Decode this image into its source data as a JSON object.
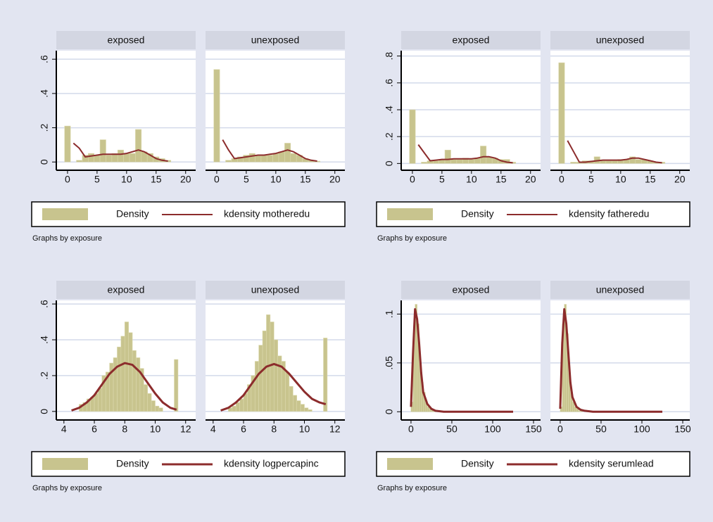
{
  "chart_data": [
    {
      "type": "histogram",
      "xlim": [
        -1.9,
        21.7
      ],
      "xticks": [
        0,
        5,
        10,
        15,
        20
      ],
      "ylim": [
        -0.04,
        0.65
      ],
      "yticks": [
        0,
        {
          "value": 0.2,
          "label": ".2"
        },
        {
          "value": 0.4,
          "label": ".4"
        },
        {
          "value": 0.6,
          "label": ".6"
        }
      ],
      "grid": true,
      "line_width": 2,
      "legend": [
        {
          "name": "Density",
          "color": "#c8c48e"
        },
        {
          "name": "kdensity motheredu",
          "color": "#8c2c2c"
        }
      ],
      "note": "Graphs by exposure",
      "panels": [
        {
          "title": "exposed",
          "bins": [
            -0.5,
            0.5,
            1.5,
            2.5,
            3.5,
            4.5,
            5.5,
            6.5,
            7.5,
            8.5,
            9.5,
            10.5,
            11.5,
            12.5,
            13.5,
            14.5,
            15.5,
            16.5,
            17.5
          ],
          "values": [
            0.21,
            0,
            0.01,
            0.04,
            0.05,
            0.04,
            0.13,
            0.04,
            0.05,
            0.07,
            0.05,
            0.05,
            0.19,
            0.06,
            0.05,
            0.03,
            0.02,
            0.01
          ],
          "density": {
            "x": [
              1,
              2,
              3,
              4,
              5,
              6,
              7,
              8,
              9,
              10,
              11,
              12,
              13,
              14,
              15,
              16,
              17
            ],
            "y": [
              0.11,
              0.08,
              0.03,
              0.035,
              0.04,
              0.045,
              0.045,
              0.045,
              0.045,
              0.05,
              0.06,
              0.07,
              0.06,
              0.04,
              0.02,
              0.01,
              0.005
            ]
          }
        },
        {
          "title": "unexposed",
          "bins": [
            -0.5,
            0.5,
            1.5,
            2.5,
            3.5,
            4.5,
            5.5,
            6.5,
            7.5,
            8.5,
            9.5,
            10.5,
            11.5,
            12.5,
            13.5,
            14.5,
            15.5,
            16.5,
            17.5
          ],
          "values": [
            0.54,
            0,
            0.01,
            0.02,
            0.03,
            0.04,
            0.05,
            0.04,
            0.04,
            0.04,
            0.05,
            0.06,
            0.11,
            0.05,
            0.04,
            0.02,
            0.01,
            0.005
          ],
          "density": {
            "x": [
              1,
              2,
              3,
              4,
              5,
              6,
              7,
              8,
              9,
              10,
              11,
              12,
              13,
              14,
              15,
              16,
              17
            ],
            "y": [
              0.13,
              0.07,
              0.02,
              0.025,
              0.03,
              0.035,
              0.04,
              0.04,
              0.045,
              0.05,
              0.06,
              0.07,
              0.06,
              0.04,
              0.02,
              0.01,
              0.005
            ]
          }
        }
      ]
    },
    {
      "type": "histogram",
      "xlim": [
        -1.9,
        21.7
      ],
      "xticks": [
        0,
        5,
        10,
        15,
        20
      ],
      "ylim": [
        -0.04,
        0.84
      ],
      "yticks": [
        0,
        {
          "value": 0.2,
          "label": ".2"
        },
        {
          "value": 0.4,
          "label": ".4"
        },
        {
          "value": 0.6,
          "label": ".6"
        },
        {
          "value": 0.8,
          "label": ".8"
        }
      ],
      "grid": true,
      "line_width": 2,
      "legend": [
        {
          "name": "Density",
          "color": "#c8c48e"
        },
        {
          "name": "kdensity fatheredu",
          "color": "#8c2c2c"
        }
      ],
      "note": "Graphs by exposure",
      "panels": [
        {
          "title": "exposed",
          "bins": [
            -0.5,
            0.5,
            1.5,
            2.5,
            3.5,
            4.5,
            5.5,
            6.5,
            7.5,
            8.5,
            9.5,
            10.5,
            11.5,
            12.5,
            13.5,
            14.5,
            15.5,
            16.5,
            17.5
          ],
          "values": [
            0.4,
            0,
            0.01,
            0.02,
            0.02,
            0.03,
            0.1,
            0.03,
            0.03,
            0.04,
            0.03,
            0.04,
            0.13,
            0.05,
            0.04,
            0.03,
            0.03,
            0.01
          ],
          "density": {
            "x": [
              1,
              2,
              3,
              4,
              5,
              6,
              7,
              8,
              9,
              10,
              11,
              12,
              13,
              14,
              15,
              16,
              17
            ],
            "y": [
              0.14,
              0.08,
              0.02,
              0.025,
              0.03,
              0.03,
              0.035,
              0.035,
              0.035,
              0.035,
              0.04,
              0.05,
              0.05,
              0.04,
              0.02,
              0.01,
              0.005
            ]
          }
        },
        {
          "title": "unexposed",
          "bins": [
            -0.5,
            0.5,
            1.5,
            2.5,
            3.5,
            4.5,
            5.5,
            6.5,
            7.5,
            8.5,
            9.5,
            10.5,
            11.5,
            12.5,
            13.5,
            14.5,
            15.5,
            16.5,
            17.5
          ],
          "values": [
            0.75,
            0,
            0.01,
            0.01,
            0.02,
            0.02,
            0.05,
            0.02,
            0.02,
            0.02,
            0.03,
            0.03,
            0.05,
            0.03,
            0.03,
            0.02,
            0.01,
            0.01
          ],
          "density": {
            "x": [
              1,
              2,
              3,
              4,
              5,
              6,
              7,
              8,
              9,
              10,
              11,
              12,
              13,
              14,
              15,
              16,
              17
            ],
            "y": [
              0.17,
              0.09,
              0.01,
              0.01,
              0.015,
              0.02,
              0.025,
              0.025,
              0.025,
              0.025,
              0.03,
              0.04,
              0.04,
              0.03,
              0.02,
              0.01,
              0.005
            ]
          }
        }
      ]
    },
    {
      "type": "histogram",
      "xlim": [
        3.5,
        12.66
      ],
      "xticks": [
        4,
        6,
        8,
        10,
        12
      ],
      "ylim": [
        -0.04,
        0.62
      ],
      "yticks": [
        0,
        {
          "value": 0.2,
          "label": ".2"
        },
        {
          "value": 0.4,
          "label": ".4"
        },
        {
          "value": 0.6,
          "label": ".6"
        }
      ],
      "grid": true,
      "line_width": 3,
      "legend": [
        {
          "name": "Density",
          "color": "#c8c48e"
        },
        {
          "name": "kdensity logpercapinc",
          "color": "#8c2c2c"
        }
      ],
      "note": "Graphs by exposure",
      "panels": [
        {
          "title": "exposed",
          "bins": [
            5,
            5.25,
            5.5,
            5.75,
            6,
            6.25,
            6.5,
            6.75,
            7,
            7.25,
            7.5,
            7.75,
            8,
            8.25,
            8.5,
            8.75,
            9,
            9.25,
            9.5,
            9.75,
            10,
            10.25,
            10.5,
            10.75,
            11,
            11.25,
            11.5
          ],
          "values": [
            0.04,
            0.05,
            0.07,
            0.08,
            0.1,
            0.13,
            0.2,
            0.22,
            0.27,
            0.3,
            0.36,
            0.42,
            0.5,
            0.44,
            0.34,
            0.3,
            0.24,
            0.15,
            0.1,
            0.06,
            0.03,
            0.02,
            0,
            0,
            0,
            0.29
          ],
          "density": {
            "x": [
              4.5,
              5,
              5.5,
              6,
              6.5,
              7,
              7.5,
              8,
              8.5,
              9,
              9.5,
              10,
              10.5,
              11,
              11.4
            ],
            "y": [
              0.005,
              0.02,
              0.05,
              0.09,
              0.15,
              0.21,
              0.25,
              0.27,
              0.26,
              0.22,
              0.16,
              0.1,
              0.05,
              0.02,
              0.01
            ]
          }
        },
        {
          "title": "unexposed",
          "bins": [
            5,
            5.25,
            5.5,
            5.75,
            6,
            6.25,
            6.5,
            6.75,
            7,
            7.25,
            7.5,
            7.75,
            8,
            8.25,
            8.5,
            8.75,
            9,
            9.25,
            9.5,
            9.75,
            10,
            10.25,
            10.5,
            10.75,
            11,
            11.25,
            11.5
          ],
          "values": [
            0.02,
            0.03,
            0.05,
            0.07,
            0.1,
            0.15,
            0.2,
            0.28,
            0.37,
            0.45,
            0.54,
            0.5,
            0.4,
            0.31,
            0.28,
            0.22,
            0.14,
            0.09,
            0.06,
            0.04,
            0.02,
            0.01,
            0,
            0,
            0,
            0.41
          ],
          "density": {
            "x": [
              4.5,
              5,
              5.5,
              6,
              6.5,
              7,
              7.5,
              8,
              8.5,
              9,
              9.5,
              10,
              10.5,
              11,
              11.4
            ],
            "y": [
              0.005,
              0.02,
              0.05,
              0.09,
              0.15,
              0.21,
              0.25,
              0.265,
              0.25,
              0.21,
              0.16,
              0.11,
              0.07,
              0.05,
              0.04
            ]
          }
        }
      ]
    },
    {
      "type": "histogram",
      "xlim": [
        -12,
        158.6
      ],
      "xticks": [
        0,
        50,
        100,
        150
      ],
      "ylim": [
        -0.007,
        0.114
      ],
      "yticks": [
        0,
        {
          "value": 0.05,
          "label": ".05"
        },
        {
          "value": 0.1,
          "label": ".1"
        }
      ],
      "grid": true,
      "line_width": 3,
      "legend": [
        {
          "name": "Density",
          "color": "#c8c48e"
        },
        {
          "name": "kdensity serumlead",
          "color": "#8c2c2c"
        }
      ],
      "note": "Graphs by exposure",
      "panels": [
        {
          "title": "exposed",
          "bins": [
            0,
            2.5,
            5,
            7.5,
            10,
            12.5,
            15,
            17.5,
            20,
            22.5,
            25,
            27.5,
            30
          ],
          "values": [
            0.01,
            0.08,
            0.11,
            0.09,
            0.05,
            0.03,
            0.02,
            0.01,
            0.005,
            0.003,
            0.002,
            0.001
          ],
          "density": {
            "x": [
              0,
              2.5,
              5,
              7.5,
              10,
              12.5,
              15,
              20,
              25,
              30,
              40,
              60,
              80,
              100,
              125
            ],
            "y": [
              0.005,
              0.06,
              0.105,
              0.095,
              0.07,
              0.04,
              0.02,
              0.008,
              0.003,
              0.001,
              0,
              0,
              0,
              0,
              0
            ]
          }
        },
        {
          "title": "unexposed",
          "bins": [
            0,
            2.5,
            5,
            7.5,
            10,
            12.5,
            15,
            17.5,
            20,
            22.5,
            25,
            27.5,
            30
          ],
          "values": [
            0.005,
            0.09,
            0.11,
            0.08,
            0.04,
            0.02,
            0.01,
            0.005,
            0.003,
            0.001,
            0.001,
            0
          ],
          "density": {
            "x": [
              0,
              2.5,
              5,
              7.5,
              10,
              12.5,
              15,
              20,
              25,
              30,
              40,
              60,
              80,
              100,
              125
            ],
            "y": [
              0.003,
              0.07,
              0.105,
              0.09,
              0.06,
              0.03,
              0.015,
              0.005,
              0.002,
              0.001,
              0,
              0,
              0,
              0,
              0
            ]
          }
        }
      ]
    }
  ]
}
